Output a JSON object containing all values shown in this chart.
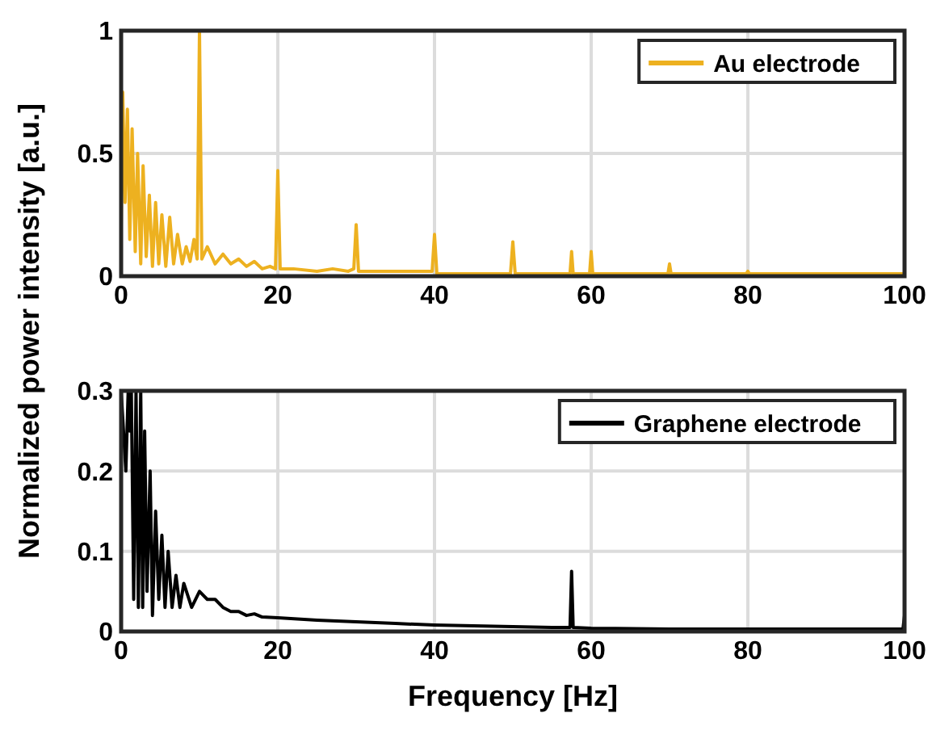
{
  "chart_data": [
    {
      "type": "line",
      "ylabel": "Normalized power intensity [a.u.]",
      "xlim": [
        0,
        100
      ],
      "ylim": [
        0,
        1
      ],
      "xticks": [
        0,
        20,
        40,
        60,
        80,
        100
      ],
      "yticks": [
        0,
        0.5,
        1
      ],
      "grid": true,
      "legend": "top right",
      "series": [
        {
          "name": "Au electrode",
          "color": "#edb120",
          "x": [
            0,
            0.2,
            0.5,
            0.8,
            1.1,
            1.4,
            1.8,
            2.1,
            2.5,
            2.8,
            3.2,
            3.6,
            4.0,
            4.4,
            4.8,
            5.2,
            5.7,
            6.2,
            6.7,
            7.2,
            7.8,
            8.3,
            8.8,
            9.3,
            9.7,
            10,
            10.3,
            11,
            12,
            13,
            14,
            15,
            16,
            17,
            18,
            19,
            19.7,
            20,
            20.3,
            22,
            25,
            27,
            29,
            29.7,
            30,
            30.3,
            33,
            36,
            39.7,
            40,
            40.3,
            45,
            49.7,
            50,
            50.3,
            57.3,
            57.5,
            57.7,
            59.8,
            60,
            60.2,
            69.8,
            70,
            70.2,
            79.8,
            80,
            80.2,
            90,
            100
          ],
          "values": [
            0.2,
            0.75,
            0.3,
            0.68,
            0.15,
            0.6,
            0.1,
            0.5,
            0.05,
            0.45,
            0.08,
            0.33,
            0.04,
            0.3,
            0.05,
            0.25,
            0.04,
            0.24,
            0.05,
            0.17,
            0.05,
            0.12,
            0.06,
            0.15,
            0.07,
            1.0,
            0.07,
            0.12,
            0.05,
            0.09,
            0.05,
            0.07,
            0.04,
            0.06,
            0.03,
            0.04,
            0.03,
            0.43,
            0.03,
            0.03,
            0.02,
            0.03,
            0.02,
            0.03,
            0.21,
            0.02,
            0.02,
            0.02,
            0.02,
            0.17,
            0.01,
            0.01,
            0.01,
            0.14,
            0.01,
            0.01,
            0.1,
            0.01,
            0.01,
            0.1,
            0.01,
            0.01,
            0.05,
            0.01,
            0.01,
            0.02,
            0.01,
            0.01,
            0.01
          ]
        }
      ]
    },
    {
      "type": "line",
      "xlabel": "Frequency [Hz]",
      "xlim": [
        0,
        100
      ],
      "ylim": [
        0,
        0.3
      ],
      "xticks": [
        0,
        20,
        40,
        60,
        80,
        100
      ],
      "yticks": [
        0,
        0.1,
        0.2,
        0.3
      ],
      "grid": true,
      "legend": "top right",
      "series": [
        {
          "name": "Graphene electrode",
          "color": "#000000",
          "x": [
            0,
            0.6,
            0.9,
            1.1,
            1.3,
            1.6,
            1.9,
            2.2,
            2.5,
            2.75,
            3,
            3.3,
            3.7,
            4,
            4.4,
            4.8,
            5.2,
            5.6,
            6,
            6.5,
            7,
            7.5,
            8,
            9,
            10,
            11,
            12,
            13,
            14,
            15,
            16,
            17,
            18,
            20,
            25,
            30,
            35,
            40,
            45,
            50,
            55,
            57.3,
            57.5,
            57.7,
            60,
            70,
            80,
            90,
            99.8,
            100
          ],
          "values": [
            0.3,
            0.2,
            0.3,
            0.25,
            0.3,
            0.04,
            0.3,
            0.03,
            0.3,
            0.03,
            0.25,
            0.05,
            0.2,
            0.02,
            0.15,
            0.04,
            0.12,
            0.03,
            0.1,
            0.03,
            0.07,
            0.03,
            0.06,
            0.03,
            0.05,
            0.04,
            0.04,
            0.03,
            0.025,
            0.025,
            0.02,
            0.022,
            0.018,
            0.017,
            0.014,
            0.012,
            0.01,
            0.008,
            0.007,
            0.006,
            0.005,
            0.005,
            0.075,
            0.005,
            0.004,
            0.003,
            0.003,
            0.003,
            0.003,
            0.02
          ]
        }
      ]
    }
  ]
}
